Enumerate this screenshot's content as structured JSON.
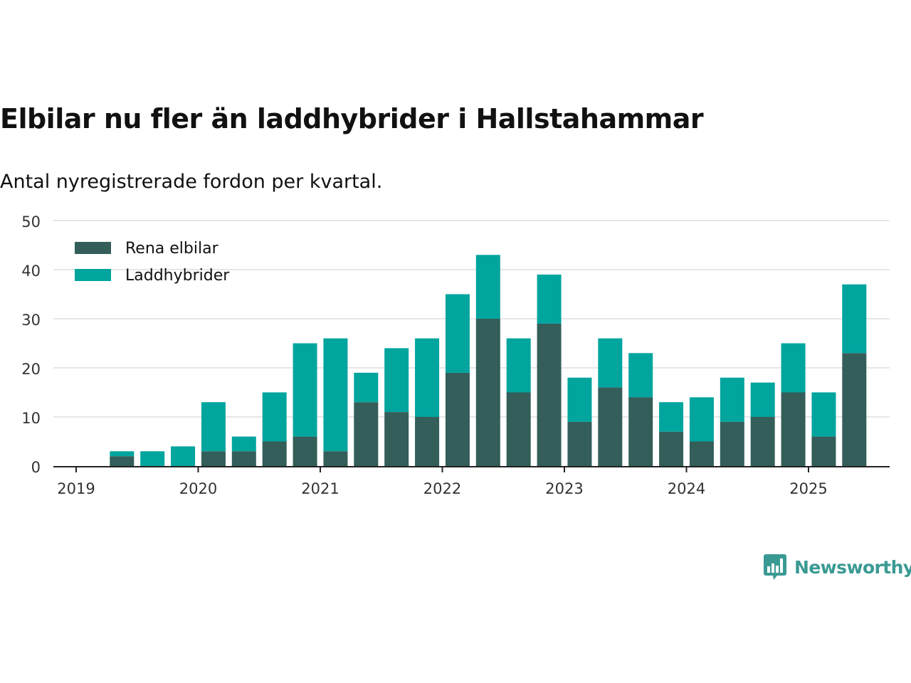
{
  "title": "Elbilar nu fler än laddhybrider i Hallstahammar",
  "subtitle": "Antal nyregistrerade fordon per kvartal.",
  "brand": {
    "name": "Newsworthy",
    "color": "#3a9a93",
    "icon": "bar-chart-speech-bubble-icon"
  },
  "colors": {
    "electric": "#335e5a",
    "hybrid": "#00a59e",
    "grid": "#dddddd",
    "axis": "#222222"
  },
  "chart_data": {
    "type": "bar",
    "stacked": true,
    "title": "Elbilar nu fler än laddhybrider i Hallstahammar",
    "subtitle": "Antal nyregistrerade fordon per kvartal.",
    "xlabel": "",
    "ylabel": "",
    "ylim": [
      0,
      50
    ],
    "yticks": [
      "0",
      "10",
      "20",
      "30",
      "40",
      "50"
    ],
    "xticks": [
      "2019",
      "2020",
      "2021",
      "2022",
      "2023",
      "2024",
      "2025"
    ],
    "legend_position": "top-left",
    "grid": true,
    "categories": [
      "2019 Q2",
      "2019 Q3",
      "2019 Q4",
      "2020 Q1",
      "2020 Q2",
      "2020 Q3",
      "2020 Q4",
      "2021 Q1",
      "2021 Q2",
      "2021 Q3",
      "2021 Q4",
      "2022 Q1",
      "2022 Q2",
      "2022 Q3",
      "2022 Q4",
      "2023 Q1",
      "2023 Q2",
      "2023 Q3",
      "2023 Q4",
      "2024 Q1",
      "2024 Q2",
      "2024 Q3",
      "2024 Q4",
      "2025 Q1",
      "2025 Q2"
    ],
    "series": [
      {
        "name": "Rena elbilar",
        "color": "#335e5a",
        "values": [
          2,
          0,
          0,
          3,
          3,
          5,
          6,
          3,
          13,
          11,
          10,
          19,
          30,
          15,
          29,
          9,
          16,
          14,
          7,
          5,
          9,
          10,
          15,
          6,
          23
        ]
      },
      {
        "name": "Laddhybrider",
        "color": "#00a59e",
        "values": [
          1,
          3,
          4,
          10,
          3,
          10,
          19,
          23,
          6,
          13,
          16,
          16,
          13,
          11,
          10,
          9,
          10,
          9,
          6,
          9,
          9,
          7,
          10,
          9,
          14
        ]
      }
    ]
  }
}
